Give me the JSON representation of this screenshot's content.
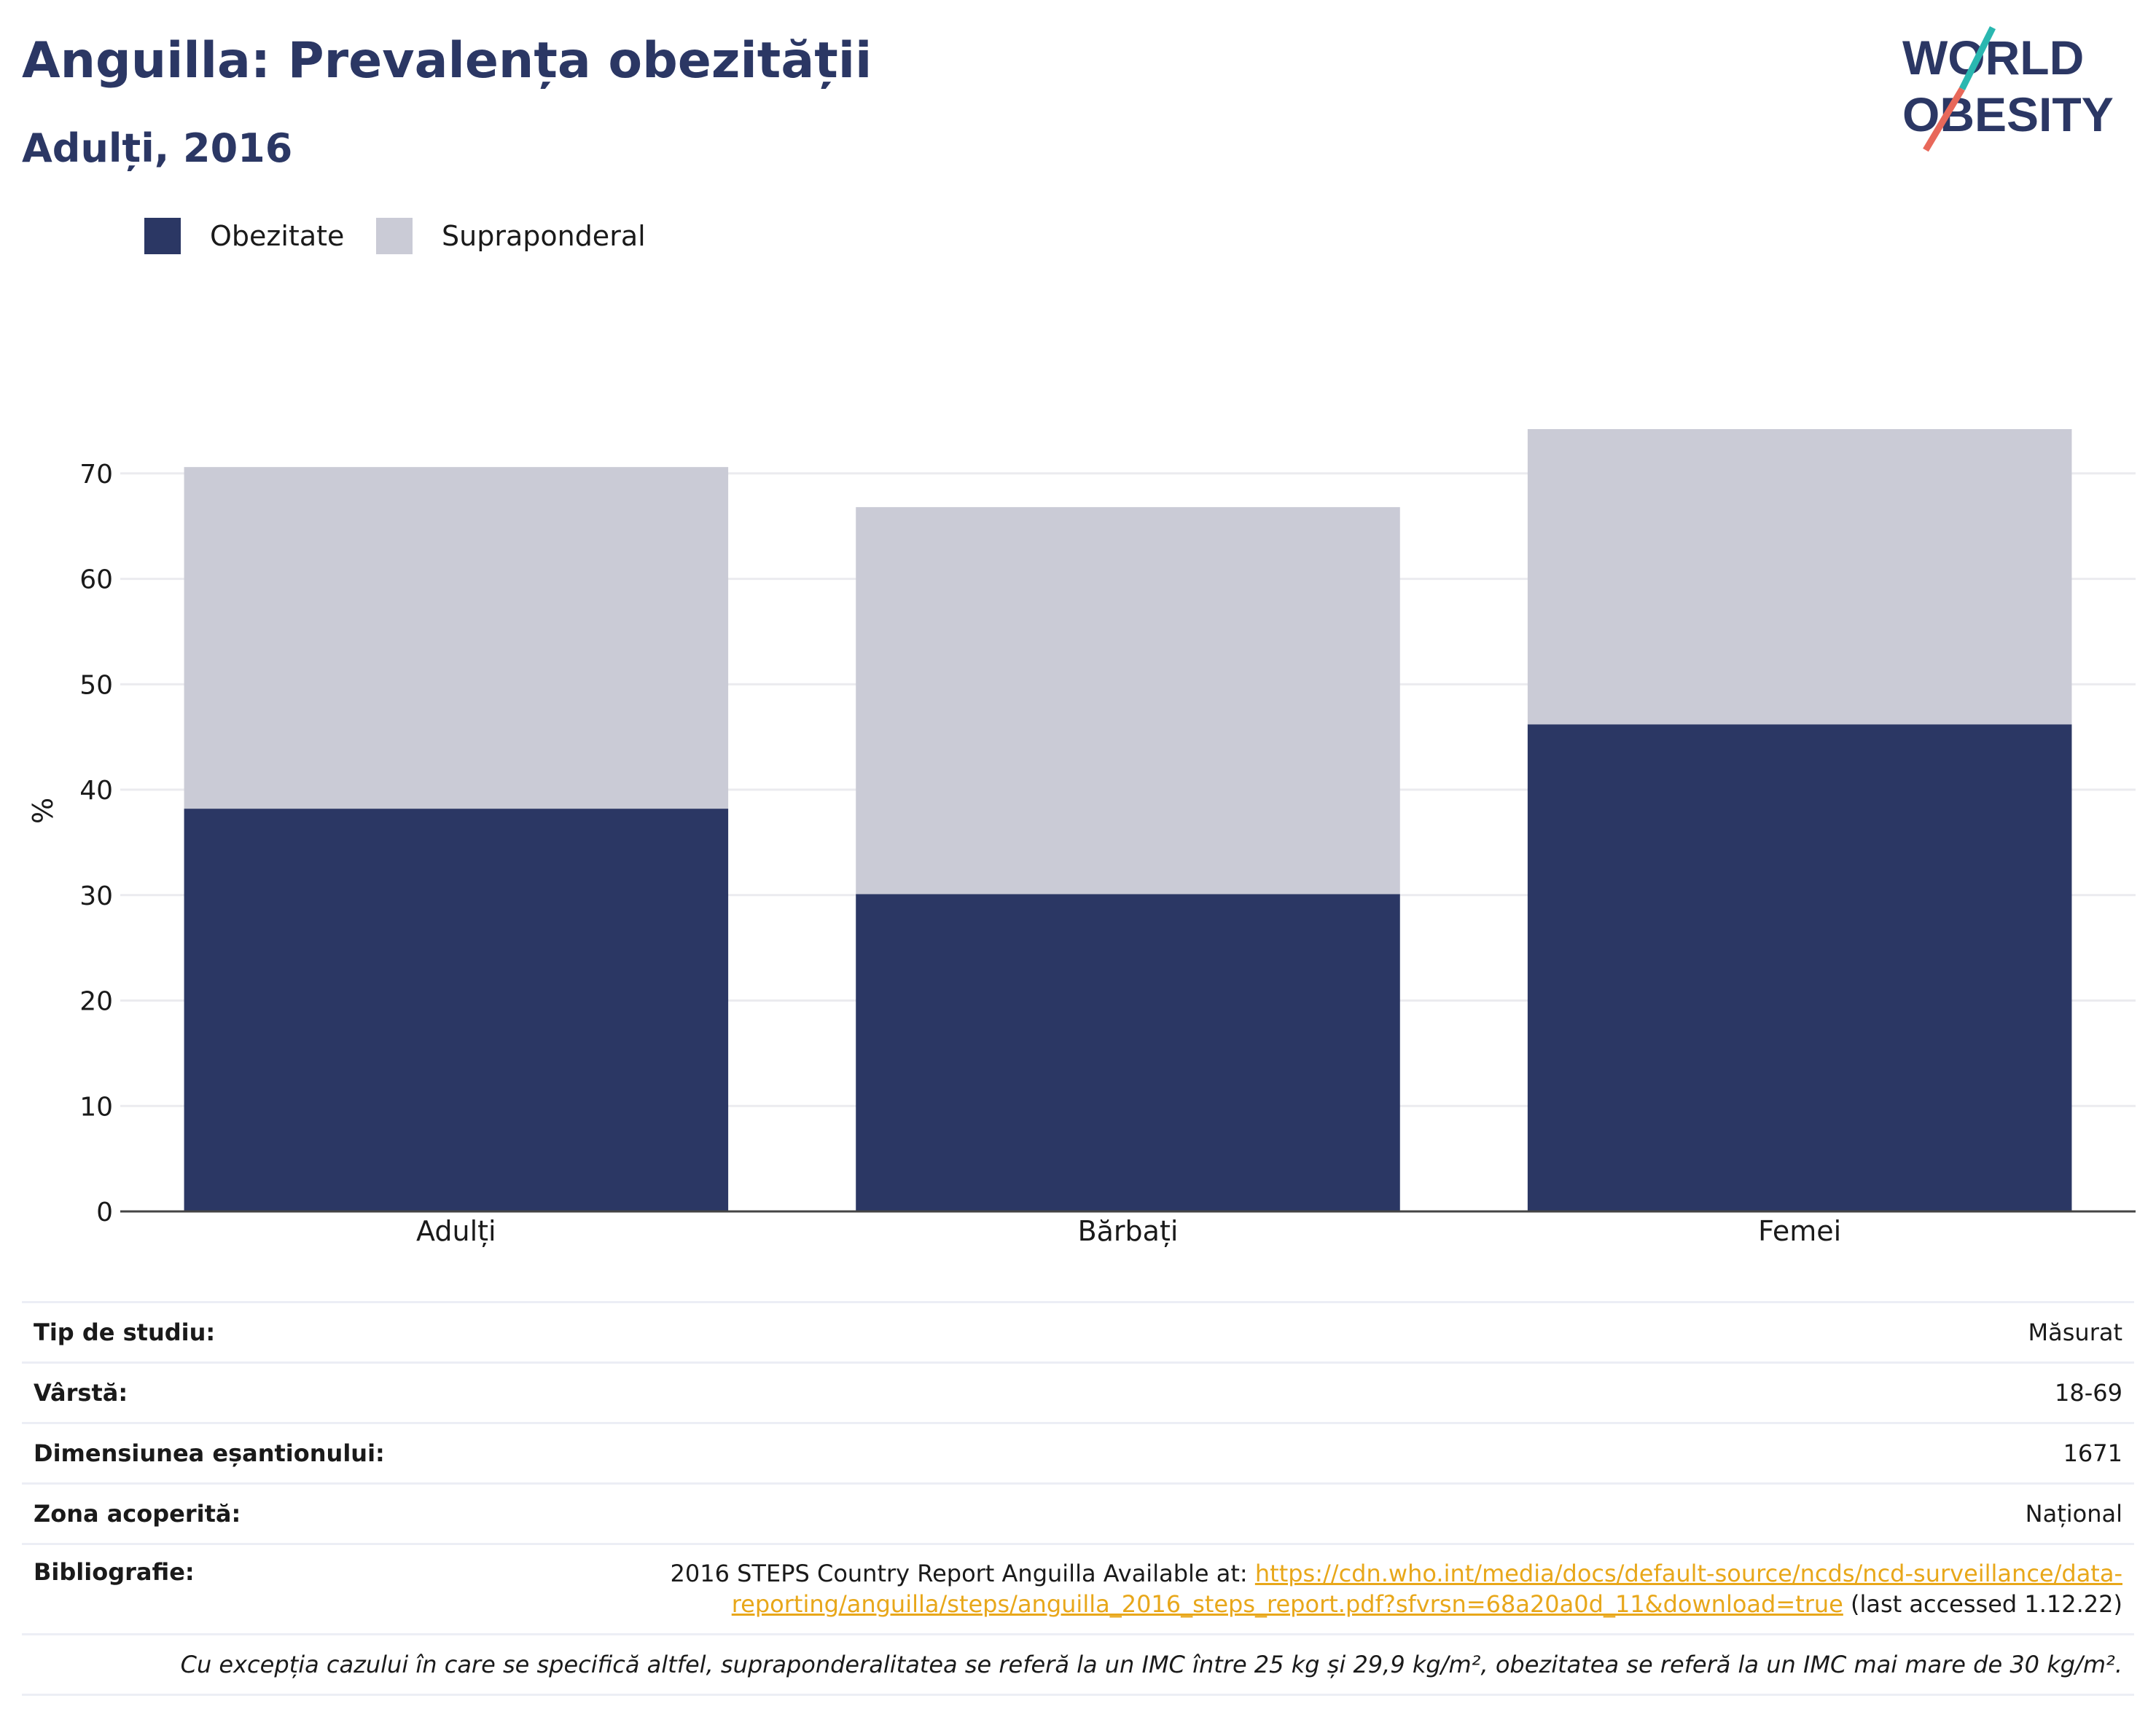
{
  "header": {
    "title": "Anguilla: Prevalența obezității",
    "subtitle": "Adulți, 2016"
  },
  "logo": {
    "line1": "WORLD",
    "line2": "OBESITY"
  },
  "colors": {
    "obesity": "#2b3764",
    "overweight": "#cacbd6",
    "link": "#e8a71a",
    "title": "#2b3764",
    "logo_slash_top": "#2ab7b0",
    "logo_slash_bottom": "#e8685a"
  },
  "chart_data": {
    "type": "bar",
    "stacked": true,
    "categories": [
      "Adulți",
      "Bărbați",
      "Femei"
    ],
    "series": [
      {
        "name": "Obezitate",
        "values": [
          38.2,
          30.1,
          46.2
        ]
      },
      {
        "name": "Supraponderal",
        "values": [
          32.4,
          36.7,
          28.0
        ]
      }
    ],
    "ylabel": "%",
    "ylim": [
      0,
      76
    ],
    "yticks": [
      0,
      10,
      20,
      30,
      40,
      50,
      60,
      70
    ],
    "grid": true,
    "legend": "top-left"
  },
  "info": {
    "study_type_label": "Tip de studiu:",
    "study_type_value": "Măsurat",
    "age_label": "Vârstă:",
    "age_value": "18-69",
    "sample_label": "Dimensiunea eșantionului:",
    "sample_value": "1671",
    "area_label": "Zona acoperită:",
    "area_value": "Național",
    "biblio_label": "Bibliografie:",
    "biblio_prefix": "2016 STEPS Country Report Anguilla Available at: ",
    "biblio_link": "https://cdn.who.int/media/docs/default-source/ncds/ncd-surveillance/data-reporting/anguilla/steps/anguilla_2016_steps_report.pdf?sfvrsn=68a20a0d_11&download=true",
    "biblio_suffix": " (last accessed 1.12.22)",
    "note": "Cu excepția cazului în care se specifică altfel, supraponderalitatea se referă la un IMC între 25 kg și 29,9 kg/m², obezitatea se referă la un IMC mai mare de 30 kg/m²."
  }
}
